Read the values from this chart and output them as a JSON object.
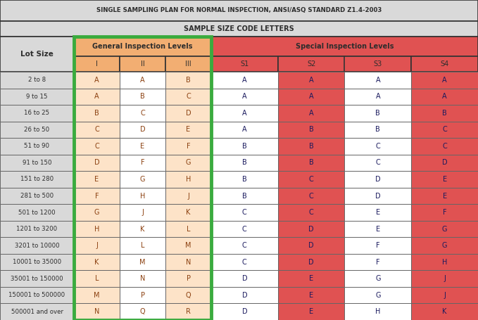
{
  "title1": "SINGLE SAMPLING PLAN FOR NORMAL INSPECTION, ANSI/ASQ STANDARD Z1.4-2003",
  "title2": "SAMPLE SIZE CODE LETTERS",
  "col_header1": "Lot Size",
  "col_header2": "General Inspection Levels",
  "col_header3": "Special Inspection Levels",
  "sub_headers_gen": [
    "I",
    "II",
    "III"
  ],
  "sub_headers_spec": [
    "S1",
    "S2",
    "S3",
    "S4"
  ],
  "lot_sizes": [
    "2 to 8",
    "9 to 15",
    "16 to 25",
    "26 to 50",
    "51 to 90",
    "91 to 150",
    "151 to 280",
    "281 to 500",
    "501 to 1200",
    "1201 to 3200",
    "3201 to 10000",
    "10001 to 35000",
    "35001 to 150000",
    "150001 to 500000",
    "500001 and over"
  ],
  "gen_data": [
    [
      "A",
      "A",
      "B"
    ],
    [
      "A",
      "B",
      "C"
    ],
    [
      "B",
      "C",
      "D"
    ],
    [
      "C",
      "D",
      "E"
    ],
    [
      "C",
      "E",
      "F"
    ],
    [
      "D",
      "F",
      "G"
    ],
    [
      "E",
      "G",
      "H"
    ],
    [
      "F",
      "H",
      "J"
    ],
    [
      "G",
      "J",
      "K"
    ],
    [
      "H",
      "K",
      "L"
    ],
    [
      "J",
      "L",
      "M"
    ],
    [
      "K",
      "M",
      "N"
    ],
    [
      "L",
      "N",
      "P"
    ],
    [
      "M",
      "P",
      "Q"
    ],
    [
      "N",
      "Q",
      "R"
    ]
  ],
  "spec_data": [
    [
      "A",
      "A",
      "A",
      "A"
    ],
    [
      "A",
      "A",
      "A",
      "A"
    ],
    [
      "A",
      "A",
      "B",
      "B"
    ],
    [
      "A",
      "B",
      "B",
      "C"
    ],
    [
      "B",
      "B",
      "C",
      "C"
    ],
    [
      "B",
      "B",
      "C",
      "D"
    ],
    [
      "B",
      "C",
      "D",
      "E"
    ],
    [
      "B",
      "C",
      "D",
      "E"
    ],
    [
      "C",
      "C",
      "E",
      "F"
    ],
    [
      "C",
      "D",
      "E",
      "G"
    ],
    [
      "C",
      "D",
      "F",
      "G"
    ],
    [
      "C",
      "D",
      "F",
      "H"
    ],
    [
      "D",
      "E",
      "G",
      "J"
    ],
    [
      "D",
      "E",
      "G",
      "J"
    ],
    [
      "D",
      "E",
      "H",
      "K"
    ]
  ],
  "color_bg_title": "#d9d9d9",
  "color_gen_header": "#f2ae72",
  "color_spec_header": "#e05252",
  "color_gen_cell_light": "#fde3c8",
  "color_gen_cell_white": "#ffffff",
  "color_spec_cell_red": "#e05252",
  "color_spec_cell_white": "#ffffff",
  "color_lot_cell": "#d9d9d9",
  "color_green_border": "#3aab3e",
  "color_text_dark": "#2d2d2d",
  "color_text_brown": "#8B4010",
  "color_text_navy": "#1a1a5e",
  "color_border_dark": "#333333",
  "color_border_mid": "#666666",
  "fig_w": 6.79,
  "fig_h": 4.55,
  "dpi": 100
}
